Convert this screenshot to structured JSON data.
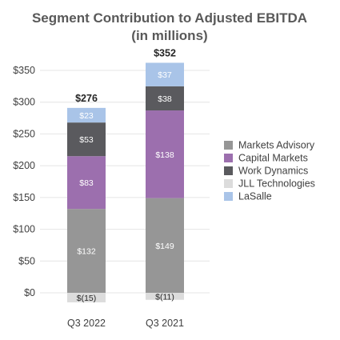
{
  "chart_data": {
    "type": "bar",
    "stacked": true,
    "title": "Segment Contribution to Adjusted EBITDA",
    "subtitle": "(in millions)",
    "categories": [
      "Q3 2022",
      "Q3 2021"
    ],
    "ylim": [
      -20,
      355
    ],
    "yticks": [
      0,
      50,
      100,
      150,
      200,
      250,
      300,
      350
    ],
    "ytick_labels": [
      "$0",
      "$50",
      "$100",
      "$150",
      "$200",
      "$250",
      "$300",
      "$350"
    ],
    "grid": true,
    "legend_position": "right",
    "totals": [
      276,
      352
    ],
    "total_labels": [
      "$276",
      "$352"
    ],
    "series": [
      {
        "name": "Markets Advisory",
        "values": [
          132,
          149
        ],
        "labels": [
          "$132",
          "$149"
        ],
        "color": "#969696",
        "label_color": "#ffffff"
      },
      {
        "name": "Capital Markets",
        "values": [
          83,
          138
        ],
        "labels": [
          "$83",
          "$138"
        ],
        "color": "#9c6fae",
        "label_color": "#ffffff"
      },
      {
        "name": "Work Dynamics",
        "values": [
          53,
          38
        ],
        "labels": [
          "$53",
          "$38"
        ],
        "color": "#5a5a5e",
        "label_color": "#ffffff"
      },
      {
        "name": "JLL Technologies",
        "values": [
          -15,
          -11
        ],
        "labels": [
          "$(15)",
          "$(11)"
        ],
        "color": "#dcdcdc",
        "label_color": "#262626"
      },
      {
        "name": "LaSalle",
        "values": [
          23,
          37
        ],
        "labels": [
          "$23",
          "$37"
        ],
        "color": "#a9c4e8",
        "label_color": "#ffffff"
      }
    ]
  }
}
